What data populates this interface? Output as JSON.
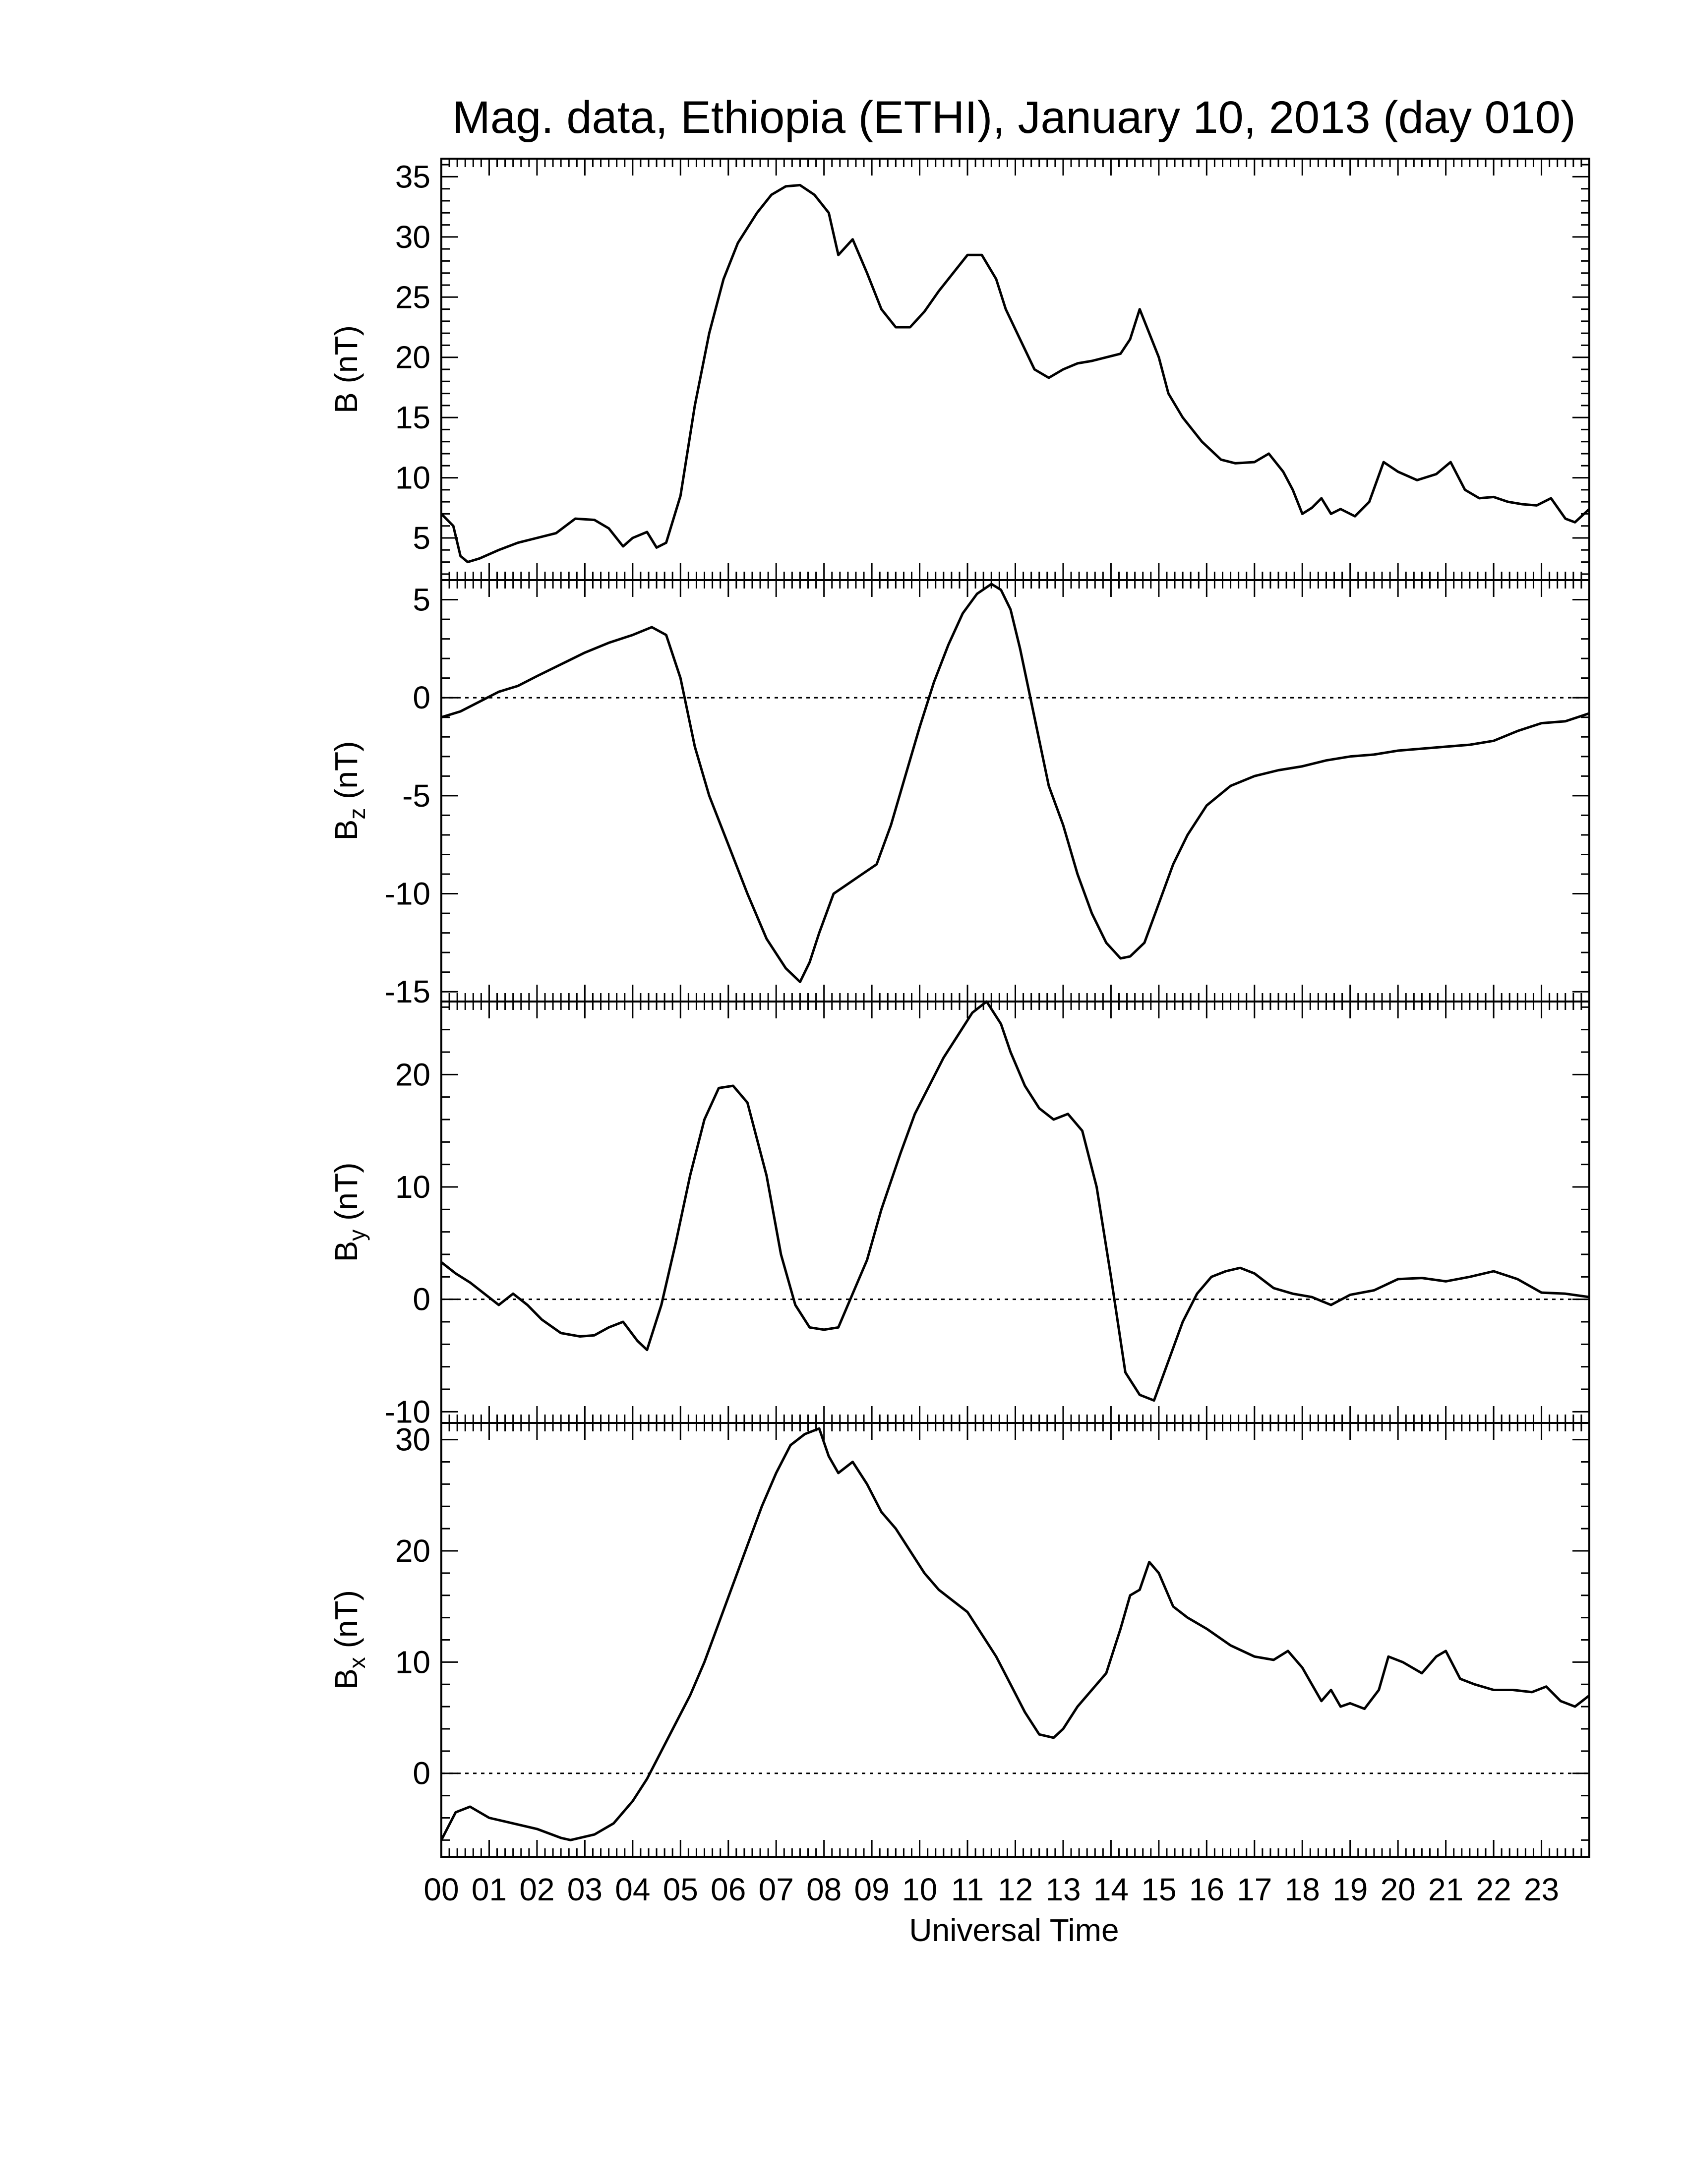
{
  "title": "Mag. data, Ethiopia (ETHI), January 10, 2013 (day 010)",
  "xlabel": "Universal Time",
  "x_tick_labels": [
    "00",
    "01",
    "02",
    "03",
    "04",
    "05",
    "06",
    "07",
    "08",
    "09",
    "10",
    "11",
    "12",
    "13",
    "14",
    "15",
    "16",
    "17",
    "18",
    "19",
    "20",
    "21",
    "22",
    "23"
  ],
  "colors": {
    "line": "#000000",
    "axis": "#000000",
    "zero_line": "#000000",
    "background": "#ffffff"
  },
  "chart_data": [
    {
      "type": "line",
      "panel": "B",
      "ylabel": "B (nT)",
      "ylabel_main": "B",
      "ylabel_sub": "",
      "ylabel_unit": " (nT)",
      "xlim": [
        0,
        24
      ],
      "ylim": [
        1.5,
        36.5
      ],
      "yticks": [
        5,
        10,
        15,
        20,
        25,
        30,
        35
      ],
      "ytick_labels": [
        "5",
        "10",
        "15",
        "20",
        "25",
        "30",
        "35"
      ],
      "zero_line": false,
      "x": [
        0.0,
        0.25,
        0.4,
        0.55,
        0.8,
        1.2,
        1.6,
        2.0,
        2.4,
        2.8,
        3.2,
        3.5,
        3.8,
        4.0,
        4.3,
        4.5,
        4.7,
        5.0,
        5.3,
        5.6,
        5.9,
        6.2,
        6.6,
        6.9,
        7.2,
        7.5,
        7.8,
        8.1,
        8.3,
        8.6,
        8.9,
        9.2,
        9.5,
        9.8,
        10.1,
        10.4,
        10.7,
        11.0,
        11.3,
        11.6,
        11.8,
        12.1,
        12.4,
        12.7,
        13.0,
        13.3,
        13.6,
        13.9,
        14.2,
        14.4,
        14.6,
        14.8,
        15.0,
        15.2,
        15.5,
        15.9,
        16.3,
        16.6,
        17.0,
        17.3,
        17.6,
        17.8,
        18.0,
        18.2,
        18.4,
        18.6,
        18.8,
        19.1,
        19.4,
        19.7,
        20.0,
        20.4,
        20.8,
        21.1,
        21.4,
        21.7,
        22.0,
        22.3,
        22.6,
        22.9,
        23.2,
        23.5,
        23.7,
        24.0
      ],
      "y": [
        7.0,
        6.0,
        3.5,
        3.0,
        3.3,
        4.0,
        4.6,
        5.0,
        5.4,
        6.6,
        6.5,
        5.8,
        4.3,
        5.0,
        5.5,
        4.2,
        4.6,
        8.5,
        16.0,
        22.0,
        26.5,
        29.5,
        32.0,
        33.5,
        34.2,
        34.3,
        33.5,
        32.0,
        28.5,
        29.8,
        27.0,
        24.0,
        22.5,
        22.5,
        23.8,
        25.5,
        27.0,
        28.5,
        28.5,
        26.5,
        24.0,
        21.5,
        19.0,
        18.3,
        19.0,
        19.5,
        19.7,
        20.0,
        20.3,
        21.5,
        24.0,
        22.0,
        20.0,
        17.0,
        15.0,
        13.0,
        11.5,
        11.2,
        11.3,
        12.0,
        10.5,
        9.0,
        7.0,
        7.5,
        8.3,
        7.0,
        7.4,
        6.8,
        8.0,
        11.3,
        10.5,
        9.8,
        10.3,
        11.3,
        9.0,
        8.3,
        8.4,
        8.0,
        7.8,
        7.7,
        8.3,
        6.6,
        6.3,
        7.4
      ]
    },
    {
      "type": "line",
      "panel": "Bz",
      "ylabel": "Bz (nT)",
      "ylabel_main": "B",
      "ylabel_sub": "z",
      "ylabel_unit": " (nT)",
      "xlim": [
        0,
        24
      ],
      "ylim": [
        -15.5,
        6.0
      ],
      "yticks": [
        -15,
        -10,
        -5,
        0,
        5
      ],
      "ytick_labels": [
        "-15",
        "-10",
        "-5",
        "0",
        "5"
      ],
      "zero_line": true,
      "x": [
        0.0,
        0.4,
        0.8,
        1.2,
        1.6,
        2.0,
        2.5,
        3.0,
        3.5,
        4.0,
        4.4,
        4.7,
        5.0,
        5.3,
        5.6,
        6.0,
        6.4,
        6.8,
        7.2,
        7.5,
        7.7,
        7.9,
        8.2,
        8.5,
        8.8,
        9.1,
        9.4,
        9.7,
        10.0,
        10.3,
        10.6,
        10.9,
        11.2,
        11.5,
        11.7,
        11.9,
        12.1,
        12.4,
        12.7,
        13.0,
        13.3,
        13.6,
        13.9,
        14.2,
        14.4,
        14.7,
        15.0,
        15.3,
        15.6,
        16.0,
        16.5,
        17.0,
        17.5,
        18.0,
        18.5,
        19.0,
        19.5,
        20.0,
        20.5,
        21.0,
        21.5,
        22.0,
        22.5,
        23.0,
        23.5,
        24.0
      ],
      "y": [
        -1.0,
        -0.7,
        -0.2,
        0.3,
        0.6,
        1.1,
        1.7,
        2.3,
        2.8,
        3.2,
        3.6,
        3.2,
        1.0,
        -2.5,
        -5.0,
        -7.5,
        -10.0,
        -12.3,
        -13.8,
        -14.5,
        -13.5,
        -12.0,
        -10.0,
        -9.5,
        -9.0,
        -8.5,
        -6.5,
        -4.0,
        -1.5,
        0.8,
        2.7,
        4.3,
        5.3,
        5.8,
        5.5,
        4.5,
        2.5,
        -1.0,
        -4.5,
        -6.5,
        -9.0,
        -11.0,
        -12.5,
        -13.3,
        -13.2,
        -12.5,
        -10.5,
        -8.5,
        -7.0,
        -5.5,
        -4.5,
        -4.0,
        -3.7,
        -3.5,
        -3.2,
        -3.0,
        -2.9,
        -2.7,
        -2.6,
        -2.5,
        -2.4,
        -2.2,
        -1.7,
        -1.3,
        -1.2,
        -0.8
      ]
    },
    {
      "type": "line",
      "panel": "By",
      "ylabel": "By (nT)",
      "ylabel_main": "B",
      "ylabel_sub": "y",
      "ylabel_unit": " (nT)",
      "xlim": [
        0,
        24
      ],
      "ylim": [
        -11.0,
        26.5
      ],
      "yticks": [
        -10,
        0,
        10,
        20
      ],
      "ytick_labels": [
        "-10",
        "0",
        "10",
        "20"
      ],
      "zero_line": true,
      "x": [
        0.0,
        0.3,
        0.6,
        0.9,
        1.2,
        1.5,
        1.8,
        2.1,
        2.5,
        2.9,
        3.2,
        3.5,
        3.8,
        4.1,
        4.3,
        4.6,
        4.9,
        5.2,
        5.5,
        5.8,
        6.1,
        6.4,
        6.8,
        7.1,
        7.4,
        7.7,
        8.0,
        8.3,
        8.6,
        8.9,
        9.2,
        9.6,
        9.9,
        10.2,
        10.5,
        10.8,
        11.1,
        11.4,
        11.7,
        11.9,
        12.2,
        12.5,
        12.8,
        13.1,
        13.4,
        13.7,
        14.0,
        14.3,
        14.6,
        14.9,
        15.2,
        15.5,
        15.8,
        16.1,
        16.4,
        16.7,
        17.0,
        17.4,
        17.8,
        18.2,
        18.6,
        19.0,
        19.5,
        20.0,
        20.5,
        21.0,
        21.5,
        22.0,
        22.5,
        23.0,
        23.5,
        24.0
      ],
      "y": [
        3.3,
        2.3,
        1.5,
        0.5,
        -0.5,
        0.5,
        -0.5,
        -1.8,
        -3.0,
        -3.3,
        -3.2,
        -2.5,
        -2.0,
        -3.7,
        -4.5,
        -0.5,
        5.0,
        11.0,
        16.0,
        18.8,
        19.0,
        17.5,
        11.0,
        4.0,
        -0.5,
        -2.5,
        -2.7,
        -2.5,
        0.5,
        3.5,
        8.0,
        13.0,
        16.5,
        19.0,
        21.5,
        23.5,
        25.5,
        26.5,
        24.5,
        22.0,
        19.0,
        17.0,
        16.0,
        16.5,
        15.0,
        10.0,
        2.0,
        -6.5,
        -8.5,
        -9.0,
        -5.5,
        -2.0,
        0.5,
        2.0,
        2.5,
        2.8,
        2.3,
        1.0,
        0.5,
        0.2,
        -0.5,
        0.4,
        0.8,
        1.8,
        1.9,
        1.6,
        2.0,
        2.5,
        1.8,
        0.6,
        0.5,
        0.2
      ]
    },
    {
      "type": "line",
      "panel": "Bx",
      "ylabel": "Bx (nT)",
      "ylabel_main": "B",
      "ylabel_sub": "x",
      "ylabel_unit": " (nT)",
      "xlim": [
        0,
        24
      ],
      "ylim": [
        -7.5,
        31.5
      ],
      "yticks": [
        0,
        10,
        20,
        30
      ],
      "ytick_labels": [
        "0",
        "10",
        "20",
        "30"
      ],
      "zero_line": true,
      "x": [
        0.0,
        0.3,
        0.6,
        1.0,
        1.5,
        2.0,
        2.5,
        2.7,
        3.2,
        3.6,
        4.0,
        4.3,
        4.6,
        4.9,
        5.2,
        5.5,
        5.8,
        6.1,
        6.4,
        6.7,
        7.0,
        7.3,
        7.6,
        7.9,
        8.1,
        8.3,
        8.6,
        8.9,
        9.2,
        9.5,
        9.8,
        10.1,
        10.4,
        10.7,
        11.0,
        11.3,
        11.6,
        11.9,
        12.2,
        12.5,
        12.8,
        13.0,
        13.3,
        13.6,
        13.9,
        14.2,
        14.4,
        14.6,
        14.8,
        15.0,
        15.3,
        15.6,
        16.0,
        16.5,
        17.0,
        17.4,
        17.7,
        18.0,
        18.2,
        18.4,
        18.6,
        18.8,
        19.0,
        19.3,
        19.6,
        19.8,
        20.1,
        20.5,
        20.8,
        21.0,
        21.3,
        21.6,
        22.0,
        22.4,
        22.8,
        23.1,
        23.4,
        23.7,
        24.0
      ],
      "y": [
        -6.0,
        -3.5,
        -3.0,
        -4.0,
        -4.5,
        -5.0,
        -5.8,
        -6.0,
        -5.5,
        -4.5,
        -2.5,
        -0.5,
        2.0,
        4.5,
        7.0,
        10.0,
        13.5,
        17.0,
        20.5,
        24.0,
        27.0,
        29.5,
        30.5,
        31.0,
        28.5,
        27.0,
        28.0,
        26.0,
        23.5,
        22.0,
        20.0,
        18.0,
        16.5,
        15.5,
        14.5,
        12.5,
        10.5,
        8.0,
        5.5,
        3.5,
        3.2,
        4.0,
        6.0,
        7.5,
        9.0,
        13.0,
        16.0,
        16.5,
        19.0,
        18.0,
        15.0,
        14.0,
        13.0,
        11.5,
        10.5,
        10.2,
        11.0,
        9.5,
        8.0,
        6.5,
        7.5,
        6.0,
        6.3,
        5.8,
        7.5,
        10.5,
        10.0,
        9.0,
        10.5,
        11.0,
        8.5,
        8.0,
        7.5,
        7.5,
        7.3,
        7.8,
        6.5,
        6.0,
        7.0
      ]
    }
  ]
}
